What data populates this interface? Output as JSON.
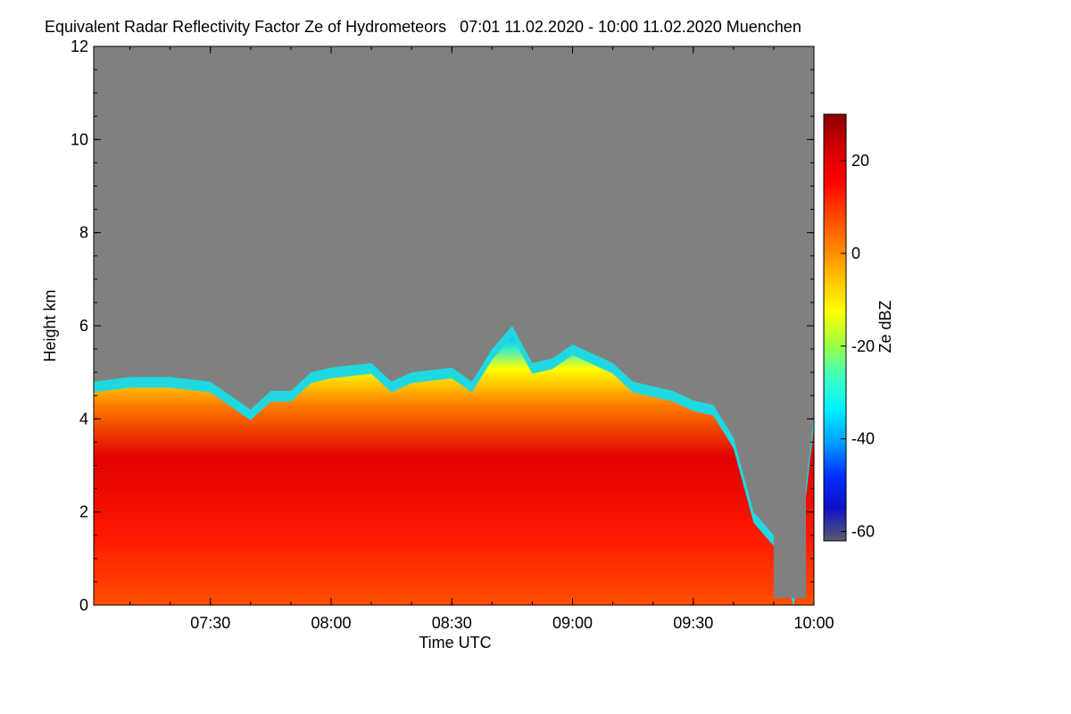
{
  "title": "Equivalent Radar Reflectivity Factor Ze of Hydrometeors   07:01 11.02.2020 - 10:00 11.02.2020 Muenchen",
  "colors": {
    "background_no_signal": "#808080",
    "colormap": [
      "#5a5a6e",
      "#1010c8",
      "#0030ff",
      "#00a0ff",
      "#00f0ff",
      "#40ffc0",
      "#a0ff40",
      "#ffff00",
      "#ffc000",
      "#ff8000",
      "#ff4000",
      "#ff0000",
      "#d00000",
      "#8b0000"
    ]
  },
  "chart_data": {
    "type": "heatmap",
    "xlabel": "Time UTC",
    "ylabel": "Height km",
    "x_range": [
      "07:01",
      "10:00"
    ],
    "xticks": [
      "07:30",
      "08:00",
      "08:30",
      "09:00",
      "09:30",
      "10:00"
    ],
    "ylim": [
      0,
      12
    ],
    "yticks": [
      "0",
      "2",
      "4",
      "6",
      "8",
      "10",
      "12"
    ],
    "colorbar": {
      "label": "Ze dBZ",
      "range": [
        -62,
        30
      ],
      "ticks": [
        "20",
        "0",
        "-20",
        "-40",
        "-60"
      ],
      "tick_values": [
        20,
        0,
        -20,
        -40,
        -60
      ]
    },
    "echo_top_km": [
      {
        "time": "07:01",
        "top": 4.8
      },
      {
        "time": "07:10",
        "top": 4.9
      },
      {
        "time": "07:20",
        "top": 4.9
      },
      {
        "time": "07:30",
        "top": 4.8
      },
      {
        "time": "07:35",
        "top": 4.5
      },
      {
        "time": "07:40",
        "top": 4.2
      },
      {
        "time": "07:45",
        "top": 4.6
      },
      {
        "time": "07:50",
        "top": 4.6
      },
      {
        "time": "07:55",
        "top": 5.0
      },
      {
        "time": "08:00",
        "top": 5.1
      },
      {
        "time": "08:10",
        "top": 5.2
      },
      {
        "time": "08:15",
        "top": 4.8
      },
      {
        "time": "08:20",
        "top": 5.0
      },
      {
        "time": "08:30",
        "top": 5.1
      },
      {
        "time": "08:35",
        "top": 4.8
      },
      {
        "time": "08:40",
        "top": 5.5
      },
      {
        "time": "08:45",
        "top": 6.0
      },
      {
        "time": "08:50",
        "top": 5.2
      },
      {
        "time": "08:55",
        "top": 5.3
      },
      {
        "time": "09:00",
        "top": 5.6
      },
      {
        "time": "09:10",
        "top": 5.2
      },
      {
        "time": "09:15",
        "top": 4.8
      },
      {
        "time": "09:20",
        "top": 4.7
      },
      {
        "time": "09:25",
        "top": 4.6
      },
      {
        "time": "09:30",
        "top": 4.4
      },
      {
        "time": "09:35",
        "top": 4.3
      },
      {
        "time": "09:40",
        "top": 3.6
      },
      {
        "time": "09:45",
        "top": 2.0
      },
      {
        "time": "09:50",
        "top": 1.5
      },
      {
        "time": "09:55",
        "top": 0.2
      },
      {
        "time": "10:00",
        "top": 4.1
      }
    ]
  }
}
